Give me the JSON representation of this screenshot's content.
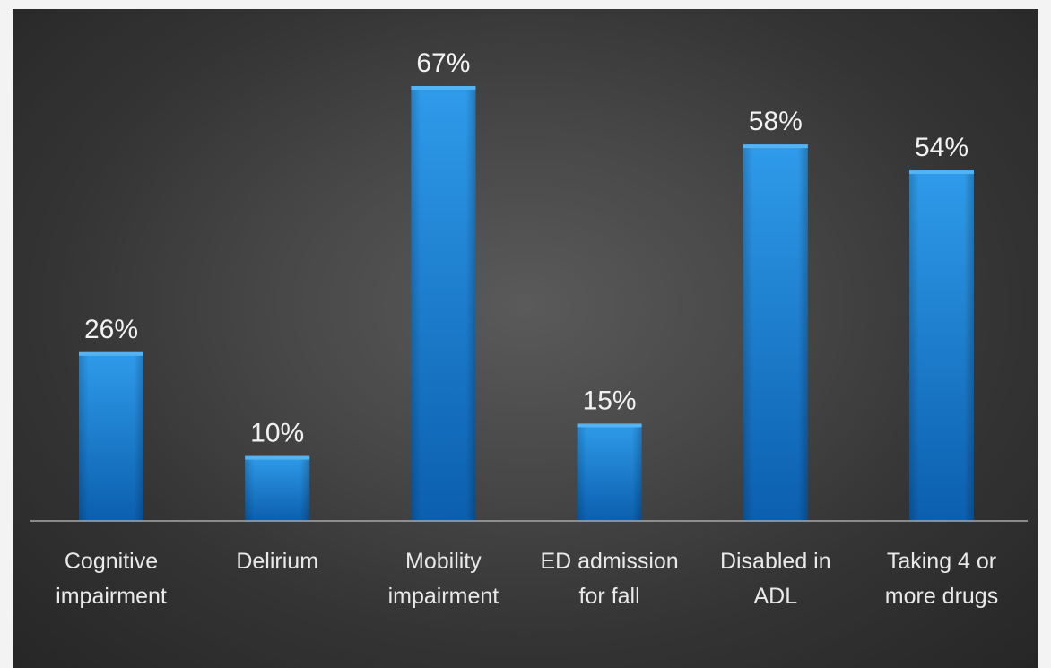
{
  "chart_data": {
    "type": "bar",
    "categories": [
      [
        "Cognitive",
        "impairment"
      ],
      [
        "Delirium"
      ],
      [
        "Mobility",
        "impairment"
      ],
      [
        "ED admission",
        "for fall"
      ],
      [
        "Disabled in",
        "ADL"
      ],
      [
        "Taking 4 or",
        "more drugs"
      ]
    ],
    "values": [
      26,
      10,
      67,
      15,
      58,
      54
    ],
    "data_labels": [
      "26%",
      "10%",
      "67%",
      "15%",
      "58%",
      "54%"
    ],
    "ylim": [
      0,
      67
    ],
    "grid": false,
    "legend": "none",
    "title": "",
    "xlabel": "",
    "ylabel": ""
  },
  "colors": {
    "bar_top": "#2f9bea",
    "bar_bottom": "#0b5fae",
    "bar_cap": "#53b4f5",
    "baseline": "#a8a8a8",
    "text": "#f2f2f2"
  }
}
